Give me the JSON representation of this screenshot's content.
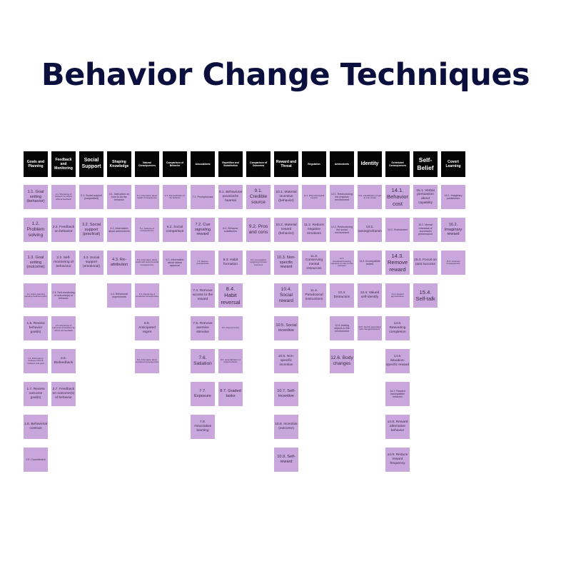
{
  "title": "Behavior Change Techniques",
  "columns": [
    {
      "header": "Goals and Planning",
      "hsize": 5,
      "cards": [
        {
          "text": "1.1. Goal setting (behavior)",
          "size": 6
        },
        {
          "text": "1.2. Problem solving",
          "size": 7
        },
        {
          "text": "1.3. Goal setting (outcome)",
          "size": 6
        },
        {
          "text": "1.4. Action planning (develop treatment plan)",
          "size": 3
        },
        {
          "text": "1.5. Review behavior goal(s)",
          "size": 5
        },
        {
          "text": "1.6. Discrepancy between current behavior and goal",
          "size": 3
        },
        {
          "text": "1.7. Review outcome goal(s)",
          "size": 5
        },
        {
          "text": "1.8. Behavioral contract",
          "size": 5
        },
        {
          "text": "1.9. Commitment",
          "size": 4
        }
      ]
    },
    {
      "header": "Feedback and Monitoring",
      "hsize": 5,
      "cards": [
        {
          "text": "2.1. Monitoring of behavior by others without feedback",
          "size": 3
        },
        {
          "text": "2.2. Feedback on behavior",
          "size": 5
        },
        {
          "text": "2.3. Self-monitoring of behaviour",
          "size": 5
        },
        {
          "text": "2.4. Self-monitoring of outcome(s) of behavior",
          "size": 4
        },
        {
          "text": "2.5. Monitoring of outcomes of behavior by others w/o feedback",
          "size": 3
        },
        {
          "text": "2.6. Biofeedback",
          "size": 5
        },
        {
          "text": "2.7. Feedback on outcome(s) of behavior",
          "size": 5
        }
      ]
    },
    {
      "header": "Social Support",
      "hsize": 8,
      "cards": [
        {
          "text": "3.1. Social support (unspecified)",
          "size": 4
        },
        {
          "text": "3.2. Social support (practical)",
          "size": 6
        },
        {
          "text": "3.3. Social support (emotional)",
          "size": 5
        }
      ]
    },
    {
      "header": "Shaping Knowledge",
      "hsize": 5,
      "cards": [
        {
          "text": "4.1. Instruction on how to do the behavior",
          "size": 4
        },
        {
          "text": "4.2. Information about antecedents",
          "size": 4
        },
        {
          "text": "4.3. Re-attribution",
          "size": 6
        },
        {
          "text": "4.4. Behavioral experiments",
          "size": 4
        }
      ]
    },
    {
      "header": "Natural Consequences",
      "hsize": 3,
      "cards": [
        {
          "text": "5.1. Information about health consequences",
          "size": 3
        },
        {
          "text": "5.2. Salience of consequences",
          "size": 3
        },
        {
          "text": "5.3. Information about social and environmental consequences",
          "size": 3
        },
        {
          "text": "5.4. Monitoring of emotional consequences",
          "size": 3
        },
        {
          "text": "5.5. Anticipated regret",
          "size": 5
        },
        {
          "text": "5.6. Information about emotional consequences",
          "size": 3
        }
      ]
    },
    {
      "header": "Comparison of Behavior",
      "hsize": 3,
      "cards": [
        {
          "text": "6.1. Demonstration of the behavior",
          "size": 3
        },
        {
          "text": "6.2. Social comparison",
          "size": 5
        },
        {
          "text": "6.3. Information about others approval",
          "size": 4
        }
      ]
    },
    {
      "header": "Associations",
      "hsize": 3,
      "cards": [
        {
          "text": "7.1. Prompts/cues",
          "size": 4
        },
        {
          "text": "7.2. Cue signaling reward",
          "size": 6
        },
        {
          "text": "7.3. Reduce prompts/cues",
          "size": 3
        },
        {
          "text": "7.4. Remove access to the reward",
          "size": 5
        },
        {
          "text": "7.5. Remove aversive stimulus",
          "size": 5
        },
        {
          "text": "7.6. Satiation",
          "size": 7
        },
        {
          "text": "7.7. Exposure",
          "size": 6
        },
        {
          "text": "7.8. Associative learning",
          "size": 5
        }
      ]
    },
    {
      "header": "Repetition and Substitution",
      "hsize": 3,
      "cards": [
        {
          "text": "8.1. Behavioral practice/re hearsal",
          "size": 5
        },
        {
          "text": "8.2. Behavior substitution",
          "size": 4
        },
        {
          "text": "8.3. Habit formation",
          "size": 5
        },
        {
          "text": "8.4. Habit reversal",
          "size": 8
        },
        {
          "text": "8.5. Overcorrection",
          "size": 3
        },
        {
          "text": "8.6. Generalization of target behavior",
          "size": 3
        },
        {
          "text": "8.7. Graded tasks",
          "size": 6
        }
      ]
    },
    {
      "header": "Comparison of Outcomes",
      "hsize": 3,
      "cards": [
        {
          "text": "9.1. Credible source",
          "size": 7
        },
        {
          "text": "9.2. Pros and cons",
          "size": 7
        },
        {
          "text": "9.3. Comparative imagining of future outcomes",
          "size": 3
        }
      ]
    },
    {
      "header": "Reward and Threat",
      "hsize": 5,
      "cards": [
        {
          "text": "10.1. Material incentive (behavior)",
          "size": 5
        },
        {
          "text": "10.2. Material reward (behavior)",
          "size": 5
        },
        {
          "text": "10.3. Non-specific reward",
          "size": 6
        },
        {
          "text": "10.4. Social reward",
          "size": 7
        },
        {
          "text": "10.5. Social incentive",
          "size": 6
        },
        {
          "text": "10.6. Non-specific incentive",
          "size": 5
        },
        {
          "text": "10.7. Self-incentive",
          "size": 6
        },
        {
          "text": "10.8. Incentive (outcome)",
          "size": 5
        },
        {
          "text": "10.9. Self-reward",
          "size": 6
        }
      ]
    },
    {
      "header": "Regulation",
      "hsize": 3,
      "cards": [
        {
          "text": "11.1. Pharmacological support",
          "size": 3
        },
        {
          "text": "11.2. Reduce negative emotions",
          "size": 5
        },
        {
          "text": "11.3. Conserving mental resources",
          "size": 5
        },
        {
          "text": "11.4. Paradoxical instructions",
          "size": 5
        }
      ]
    },
    {
      "header": "Antecedents",
      "hsize": 3,
      "cards": [
        {
          "text": "12.1. Restructuring the physical environment",
          "size": 4
        },
        {
          "text": "12.2. Restructuring the social environment",
          "size": 4
        },
        {
          "text": "12.3. Avoidance/reducing exposure to cues for the behavior",
          "size": 3
        },
        {
          "text": "12.4. Distraction",
          "size": 5
        },
        {
          "text": "12.5. Adding objects to the environment",
          "size": 4
        },
        {
          "text": "12.6. Body changes",
          "size": 7
        }
      ]
    },
    {
      "header": "Identity",
      "hsize": 8,
      "cards": [
        {
          "text": "13.1. Identification of self as role model",
          "size": 3
        },
        {
          "text": "13.2. Framing/reframing",
          "size": 5
        },
        {
          "text": "13.3. Incompatible beliefs",
          "size": 4
        },
        {
          "text": "13.4. Valued self-identify",
          "size": 5
        },
        {
          "text": "13.5. Identity associated with changed behavior",
          "size": 3
        }
      ]
    },
    {
      "header": "Scheduled Consequences",
      "hsize": 3,
      "cards": [
        {
          "text": "14.1. Behavior cost",
          "size": 8
        },
        {
          "text": "14.2. Punishment",
          "size": 4
        },
        {
          "text": "14.3. Remove reward",
          "size": 8
        },
        {
          "text": "14.4. Reward approximation",
          "size": 3
        },
        {
          "text": "14.5. Rewarding completion",
          "size": 5
        },
        {
          "text": "14.6. Situation-specific reward",
          "size": 5
        },
        {
          "text": "14.7. Reward incompatible behavior",
          "size": 4
        },
        {
          "text": "14.8. Reward alternative behavior",
          "size": 5
        },
        {
          "text": "14.9. Reduce reward frequency",
          "size": 5
        }
      ]
    },
    {
      "header": "Self-Belief",
      "hsize": 9,
      "cards": [
        {
          "text": "15.1. Verbal persuasion about capability",
          "size": 5
        },
        {
          "text": "15.2. Mental rehearsal of successful performance",
          "size": 4
        },
        {
          "text": "15.3. Focus on past success",
          "size": 5
        },
        {
          "text": "15.4. Self-talk",
          "size": 8
        }
      ]
    },
    {
      "header": "Covert Learning",
      "hsize": 5,
      "cards": [
        {
          "text": "16.1. Imaginary punishment",
          "size": 4
        },
        {
          "text": "16.2. Imaginary reward",
          "size": 6
        },
        {
          "text": "16.3. Vicarious consequences",
          "size": 3
        }
      ]
    }
  ],
  "colors": {
    "header_bg": "#050505",
    "card_bg": "#c9a6dc",
    "title": "#0b0f3d"
  }
}
